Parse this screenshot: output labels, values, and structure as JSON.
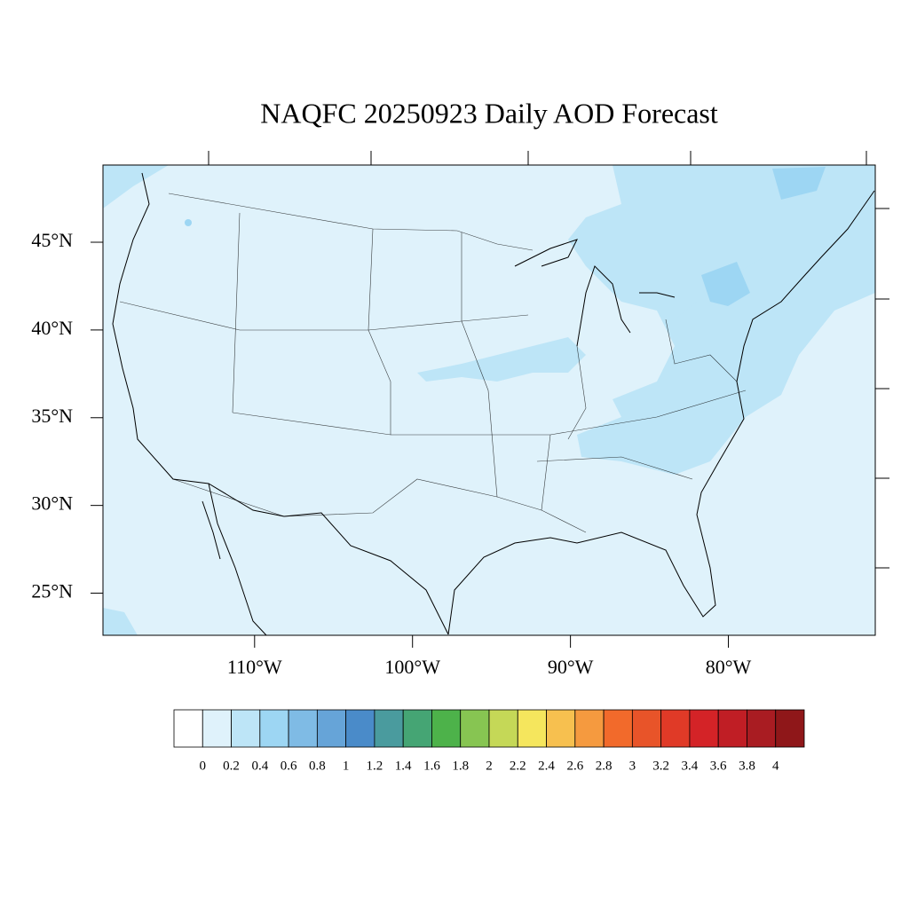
{
  "chart_data": {
    "type": "map",
    "title": "NAQFC 20250923 Daily AOD Forecast",
    "xlim": [
      -119.6,
      -70.7
    ],
    "ylim": [
      22.6,
      49.4
    ],
    "xticks": [
      {
        "value": -110,
        "label": "110°W"
      },
      {
        "value": -100,
        "label": "100°W"
      },
      {
        "value": -90,
        "label": "90°W"
      },
      {
        "value": -80,
        "label": "80°W"
      }
    ],
    "yticks": [
      {
        "value": 25,
        "label": "25°N"
      },
      {
        "value": 30,
        "label": "30°N"
      },
      {
        "value": 35,
        "label": "35°N"
      },
      {
        "value": 40,
        "label": "40°N"
      },
      {
        "value": 45,
        "label": "45°N"
      }
    ],
    "colorbar": {
      "levels": [
        0,
        0.2,
        0.4,
        0.6,
        0.8,
        1,
        1.2,
        1.4,
        1.6,
        1.8,
        2,
        2.2,
        2.4,
        2.6,
        2.8,
        3,
        3.2,
        3.4,
        3.6,
        3.8,
        4
      ],
      "colors": [
        "#ffffff",
        "#dff2fb",
        "#bde5f7",
        "#9dd6f3",
        "#7fbbe5",
        "#66a4d8",
        "#4a8bc9",
        "#4a9b9e",
        "#45a574",
        "#4db24a",
        "#87c552",
        "#c5d857",
        "#f5e65d",
        "#f7c04f",
        "#f59a3f",
        "#f26a2b",
        "#e85429",
        "#e03a27",
        "#d42327",
        "#c01e25",
        "#a91c22",
        "#8f1719"
      ]
    }
  }
}
